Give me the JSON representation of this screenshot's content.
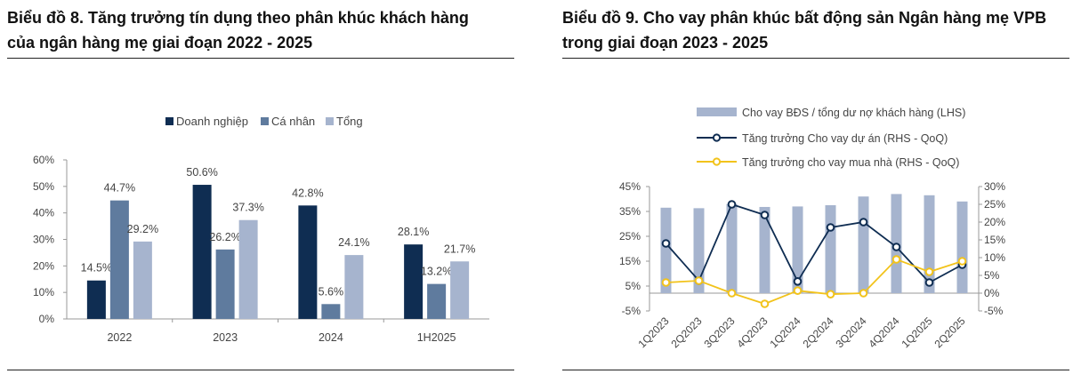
{
  "left": {
    "title_line1": "Biểu đồ 8. Tăng trưởng tín dụng theo phân khúc khách hàng",
    "title_line2": "của ngân hàng mẹ giai đoạn 2022 - 2025",
    "chart_data": {
      "type": "bar",
      "categories": [
        "2022",
        "2023",
        "2024",
        "1H2025"
      ],
      "series": [
        {
          "name": "Doanh nghiệp",
          "values": [
            14.5,
            50.6,
            42.8,
            28.1
          ],
          "labels": [
            "14.5%",
            "50.6%",
            "42.8%",
            "28.1%"
          ],
          "color": "#0f2d52"
        },
        {
          "name": "Cá nhân",
          "values": [
            44.7,
            26.2,
            5.6,
            13.2
          ],
          "labels": [
            "44.7%",
            "26.2%",
            "5.6%",
            "13.2%"
          ],
          "color": "#5f7b9e"
        },
        {
          "name": "Tổng",
          "values": [
            29.2,
            37.3,
            24.1,
            21.7
          ],
          "labels": [
            "29.2%",
            "37.3%",
            "24.1%",
            "21.7%"
          ],
          "color": "#a6b4ce"
        }
      ],
      "y_ticks": [
        "0%",
        "10%",
        "20%",
        "30%",
        "40%",
        "50%",
        "60%"
      ],
      "ylim": [
        0,
        60
      ],
      "legend": "top",
      "grid": false
    }
  },
  "right": {
    "title_line1": "Biểu đồ 9. Cho vay phân khúc bất động sản Ngân hàng mẹ VPB",
    "title_line2": "trong giai đoạn 2023 - 2025",
    "chart_data": {
      "type": "bar+line",
      "categories": [
        "1Q2023",
        "2Q2023",
        "3Q2023",
        "4Q2023",
        "1Q2024",
        "2Q2024",
        "3Q2024",
        "4Q2024",
        "1Q2025",
        "2Q2025"
      ],
      "bars": {
        "name": "Cho vay BĐS / tổng dư nợ khách hàng (LHS)",
        "axis": "left",
        "values": [
          36.5,
          36.3,
          38.0,
          36.8,
          37.0,
          37.5,
          41.0,
          42.0,
          41.5,
          39.0
        ],
        "color": "#a6b4ce"
      },
      "lines": [
        {
          "name": "Tăng trưởng Cho vay dự án (RHS - QoQ)",
          "axis": "right",
          "values": [
            14.0,
            3.5,
            25.0,
            22.0,
            3.3,
            18.5,
            20.0,
            13.0,
            3.0,
            8.0
          ],
          "color": "#0f2d52"
        },
        {
          "name": "Tăng trưởng cho vay mua nhà (RHS - QoQ)",
          "axis": "right",
          "values": [
            3.0,
            3.5,
            0.0,
            -3.0,
            0.7,
            -0.3,
            0.0,
            9.5,
            6.0,
            9.0
          ],
          "color": "#f2c31b"
        }
      ],
      "y_left_ticks": [
        "-5%",
        "5%",
        "15%",
        "25%",
        "35%",
        "45%"
      ],
      "y_left_lim": [
        -5,
        45
      ],
      "y_right_ticks": [
        "-5%",
        "0%",
        "5%",
        "10%",
        "15%",
        "20%",
        "25%",
        "30%"
      ],
      "y_right_lim": [
        -5,
        30
      ],
      "legend": "top",
      "grid": false
    }
  }
}
